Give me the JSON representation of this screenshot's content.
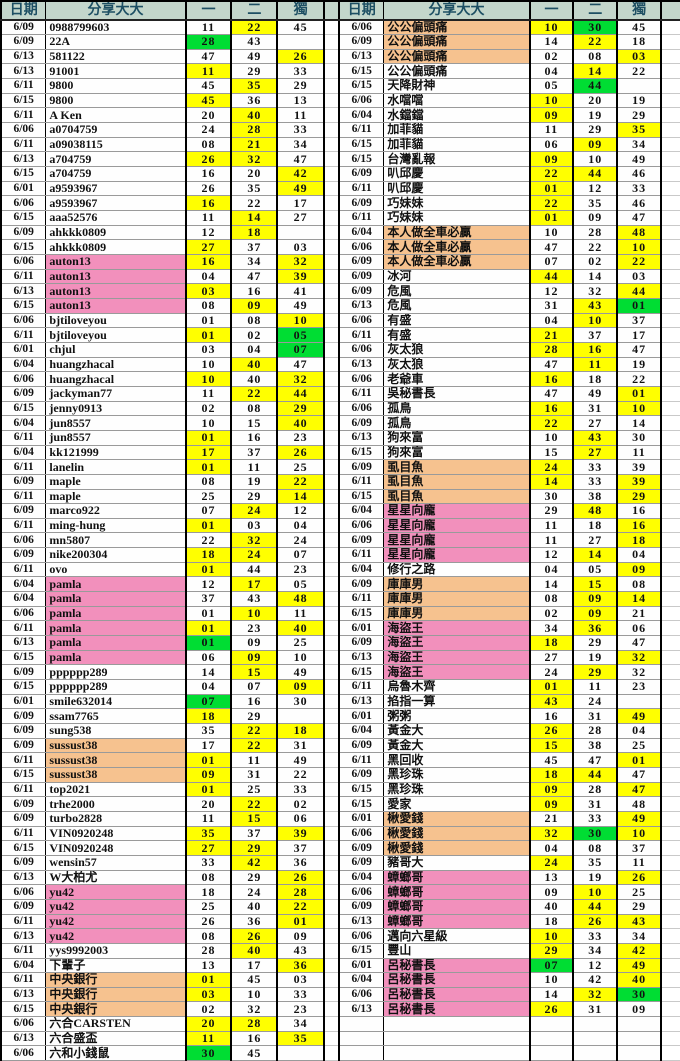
{
  "headers": {
    "date": "日期",
    "sharer": "分享大大",
    "col1": "一",
    "col2": "二",
    "col3": "獨"
  },
  "colors": {
    "highlight_yellow": "#ffff00",
    "highlight_green": "#00dd33",
    "name_pink": "#f290bc",
    "name_orange": "#f6c28f",
    "header_bg": "#c3d6cb",
    "header_text": "#1d4f63"
  },
  "left_rows": [
    [
      "6/09",
      "0988799603",
      "w",
      "11",
      "w",
      "22",
      "y",
      "45",
      "w"
    ],
    [
      "6/09",
      "22A",
      "w",
      "28",
      "g",
      "43",
      "w",
      "",
      "w"
    ],
    [
      "6/13",
      "581122",
      "w",
      "47",
      "w",
      "49",
      "w",
      "26",
      "y"
    ],
    [
      "6/13",
      "91001",
      "w",
      "11",
      "y",
      "29",
      "w",
      "33",
      "w"
    ],
    [
      "6/11",
      "9800",
      "w",
      "45",
      "w",
      "35",
      "y",
      "29",
      "w"
    ],
    [
      "6/15",
      "9800",
      "w",
      "45",
      "y",
      "36",
      "w",
      "13",
      "w"
    ],
    [
      "6/11",
      "A Ken",
      "w",
      "20",
      "w",
      "40",
      "y",
      "11",
      "w"
    ],
    [
      "6/06",
      "a0704759",
      "w",
      "24",
      "w",
      "28",
      "y",
      "33",
      "w"
    ],
    [
      "6/11",
      "a09038115",
      "w",
      "08",
      "w",
      "21",
      "y",
      "34",
      "w"
    ],
    [
      "6/13",
      "a704759",
      "w",
      "26",
      "y",
      "32",
      "y",
      "47",
      "w"
    ],
    [
      "6/15",
      "a704759",
      "w",
      "16",
      "w",
      "20",
      "w",
      "42",
      "y"
    ],
    [
      "6/01",
      "a9593967",
      "w",
      "26",
      "w",
      "35",
      "w",
      "49",
      "y"
    ],
    [
      "6/06",
      "a9593967",
      "w",
      "16",
      "y",
      "22",
      "w",
      "17",
      "w"
    ],
    [
      "6/15",
      "aaa52576",
      "w",
      "11",
      "w",
      "14",
      "y",
      "27",
      "w"
    ],
    [
      "6/09",
      "ahkkk0809",
      "w",
      "12",
      "w",
      "18",
      "y",
      "",
      "w"
    ],
    [
      "6/15",
      "ahkkk0809",
      "w",
      "27",
      "y",
      "37",
      "w",
      "03",
      "w"
    ],
    [
      "6/06",
      "auton13",
      "p",
      "16",
      "y",
      "34",
      "w",
      "32",
      "y"
    ],
    [
      "6/11",
      "auton13",
      "p",
      "04",
      "w",
      "47",
      "w",
      "39",
      "y"
    ],
    [
      "6/13",
      "auton13",
      "p",
      "03",
      "y",
      "16",
      "w",
      "41",
      "w"
    ],
    [
      "6/15",
      "auton13",
      "p",
      "08",
      "w",
      "09",
      "y",
      "49",
      "w"
    ],
    [
      "6/06",
      "bjtiloveyou",
      "w",
      "01",
      "w",
      "08",
      "w",
      "10",
      "y"
    ],
    [
      "6/11",
      "bjtiloveyou",
      "w",
      "01",
      "y",
      "02",
      "w",
      "05",
      "g"
    ],
    [
      "6/01",
      "chjul",
      "w",
      "03",
      "w",
      "04",
      "w",
      "07",
      "g"
    ],
    [
      "6/04",
      "huangzhacal",
      "w",
      "10",
      "w",
      "40",
      "y",
      "47",
      "w"
    ],
    [
      "6/06",
      "huangzhacal",
      "w",
      "10",
      "y",
      "40",
      "w",
      "32",
      "y"
    ],
    [
      "6/09",
      "jackyman77",
      "w",
      "11",
      "w",
      "22",
      "y",
      "44",
      "y"
    ],
    [
      "6/15",
      "jenny0913",
      "w",
      "02",
      "w",
      "08",
      "w",
      "29",
      "y"
    ],
    [
      "6/04",
      "jun8557",
      "w",
      "10",
      "w",
      "15",
      "w",
      "40",
      "y"
    ],
    [
      "6/11",
      "jun8557",
      "w",
      "01",
      "y",
      "16",
      "w",
      "23",
      "w"
    ],
    [
      "6/04",
      "kk121999",
      "w",
      "17",
      "y",
      "37",
      "w",
      "26",
      "y"
    ],
    [
      "6/11",
      "lanelin",
      "w",
      "01",
      "y",
      "11",
      "w",
      "25",
      "w"
    ],
    [
      "6/09",
      "maple",
      "w",
      "08",
      "w",
      "19",
      "w",
      "22",
      "y"
    ],
    [
      "6/11",
      "maple",
      "w",
      "25",
      "w",
      "29",
      "w",
      "14",
      "y"
    ],
    [
      "6/09",
      "marco922",
      "w",
      "07",
      "w",
      "24",
      "y",
      "12",
      "w"
    ],
    [
      "6/11",
      "ming-hung",
      "w",
      "01",
      "y",
      "03",
      "w",
      "04",
      "w"
    ],
    [
      "6/06",
      "mn5807",
      "w",
      "22",
      "w",
      "32",
      "y",
      "24",
      "w"
    ],
    [
      "6/09",
      "nike200304",
      "w",
      "18",
      "y",
      "24",
      "y",
      "07",
      "w"
    ],
    [
      "6/11",
      "ovo",
      "w",
      "01",
      "y",
      "44",
      "w",
      "23",
      "w"
    ],
    [
      "6/04",
      "pamla",
      "p",
      "12",
      "w",
      "17",
      "y",
      "05",
      "w"
    ],
    [
      "6/04",
      "pamla",
      "p",
      "37",
      "w",
      "43",
      "w",
      "48",
      "y"
    ],
    [
      "6/06",
      "pamla",
      "p",
      "01",
      "w",
      "10",
      "y",
      "11",
      "w"
    ],
    [
      "6/11",
      "pamla",
      "p",
      "01",
      "y",
      "23",
      "w",
      "40",
      "y"
    ],
    [
      "6/13",
      "pamla",
      "p",
      "01",
      "g",
      "09",
      "w",
      "25",
      "w"
    ],
    [
      "6/15",
      "pamla",
      "p",
      "06",
      "w",
      "09",
      "y",
      "10",
      "w"
    ],
    [
      "6/09",
      "pppppp289",
      "w",
      "14",
      "w",
      "15",
      "y",
      "49",
      "w"
    ],
    [
      "6/15",
      "pppppp289",
      "w",
      "04",
      "w",
      "07",
      "w",
      "09",
      "y"
    ],
    [
      "6/01",
      "smile632014",
      "w",
      "07",
      "g",
      "16",
      "w",
      "30",
      "w"
    ],
    [
      "6/09",
      "ssam7765",
      "w",
      "18",
      "y",
      "29",
      "w",
      "",
      "w"
    ],
    [
      "6/09",
      "sung538",
      "w",
      "35",
      "w",
      "22",
      "y",
      "18",
      "y"
    ],
    [
      "6/09",
      "sussust38",
      "o",
      "17",
      "w",
      "22",
      "y",
      "31",
      "w"
    ],
    [
      "6/11",
      "sussust38",
      "o",
      "01",
      "y",
      "11",
      "w",
      "49",
      "w"
    ],
    [
      "6/15",
      "sussust38",
      "o",
      "09",
      "y",
      "31",
      "w",
      "22",
      "w"
    ],
    [
      "6/11",
      "top2021",
      "w",
      "01",
      "y",
      "25",
      "w",
      "33",
      "w"
    ],
    [
      "6/09",
      "trhe2000",
      "w",
      "20",
      "w",
      "22",
      "y",
      "02",
      "w"
    ],
    [
      "6/09",
      "turbo2828",
      "w",
      "11",
      "w",
      "15",
      "y",
      "06",
      "w"
    ],
    [
      "6/11",
      "VIN0920248",
      "w",
      "35",
      "y",
      "37",
      "w",
      "39",
      "y"
    ],
    [
      "6/15",
      "VIN0920248",
      "w",
      "27",
      "y",
      "29",
      "y",
      "37",
      "w"
    ],
    [
      "6/09",
      "wensin57",
      "w",
      "33",
      "w",
      "42",
      "y",
      "36",
      "w"
    ],
    [
      "6/13",
      "W大柏尤",
      "w",
      "08",
      "w",
      "29",
      "w",
      "26",
      "y"
    ],
    [
      "6/06",
      "yu42",
      "p",
      "18",
      "w",
      "24",
      "w",
      "28",
      "y"
    ],
    [
      "6/09",
      "yu42",
      "p",
      "25",
      "w",
      "40",
      "w",
      "22",
      "y"
    ],
    [
      "6/11",
      "yu42",
      "p",
      "26",
      "w",
      "36",
      "w",
      "01",
      "y"
    ],
    [
      "6/13",
      "yu42",
      "p",
      "08",
      "w",
      "26",
      "y",
      "09",
      "w"
    ],
    [
      "6/11",
      "yys9992003",
      "w",
      "28",
      "w",
      "40",
      "y",
      "43",
      "w"
    ],
    [
      "6/04",
      "下輩子",
      "w",
      "13",
      "w",
      "17",
      "w",
      "36",
      "y"
    ],
    [
      "6/11",
      "中央銀行",
      "o",
      "01",
      "y",
      "45",
      "w",
      "03",
      "w"
    ],
    [
      "6/13",
      "中央銀行",
      "o",
      "03",
      "y",
      "10",
      "w",
      "33",
      "w"
    ],
    [
      "6/15",
      "中央銀行",
      "o",
      "02",
      "w",
      "32",
      "w",
      "23",
      "w"
    ],
    [
      "6/06",
      "六合CARSTEN",
      "w",
      "20",
      "y",
      "28",
      "y",
      "34",
      "w"
    ],
    [
      "6/13",
      "六合盛盃",
      "w",
      "11",
      "y",
      "16",
      "w",
      "35",
      "y"
    ],
    [
      "6/06",
      "六和小錢鼠",
      "w",
      "30",
      "g",
      "45",
      "w",
      "",
      "w"
    ]
  ],
  "right_rows": [
    [
      "6/06",
      "公公偏頭痛",
      "o",
      "10",
      "y",
      "30",
      "g",
      "45",
      "w"
    ],
    [
      "6/09",
      "公公偏頭痛",
      "o",
      "14",
      "w",
      "22",
      "y",
      "18",
      "w"
    ],
    [
      "6/13",
      "公公偏頭痛",
      "o",
      "02",
      "w",
      "08",
      "w",
      "03",
      "y"
    ],
    [
      "6/15",
      "公公偏頭痛",
      "w",
      "04",
      "w",
      "14",
      "y",
      "22",
      "w"
    ],
    [
      "6/15",
      "天降財神",
      "w",
      "05",
      "w",
      "44",
      "g",
      "",
      "w"
    ],
    [
      "6/06",
      "水噹噹",
      "w",
      "10",
      "y",
      "20",
      "w",
      "19",
      "w"
    ],
    [
      "6/04",
      "水鐺鐺",
      "w",
      "09",
      "y",
      "19",
      "w",
      "29",
      "w"
    ],
    [
      "6/11",
      "加菲貓",
      "w",
      "11",
      "w",
      "29",
      "w",
      "35",
      "y"
    ],
    [
      "6/15",
      "加菲貓",
      "w",
      "06",
      "w",
      "09",
      "y",
      "34",
      "w"
    ],
    [
      "6/15",
      "台灣亂報",
      "w",
      "09",
      "y",
      "10",
      "w",
      "49",
      "w"
    ],
    [
      "6/09",
      "叭邱慶",
      "w",
      "22",
      "y",
      "44",
      "y",
      "46",
      "w"
    ],
    [
      "6/11",
      "叭邱慶",
      "w",
      "01",
      "y",
      "12",
      "w",
      "33",
      "w"
    ],
    [
      "6/09",
      "巧妹妹",
      "w",
      "22",
      "y",
      "35",
      "w",
      "46",
      "w"
    ],
    [
      "6/11",
      "巧妹妹",
      "w",
      "01",
      "y",
      "09",
      "w",
      "47",
      "w"
    ],
    [
      "6/04",
      "本人做全車必贏",
      "o",
      "10",
      "w",
      "28",
      "w",
      "48",
      "y"
    ],
    [
      "6/06",
      "本人做全車必贏",
      "o",
      "47",
      "w",
      "22",
      "w",
      "10",
      "y"
    ],
    [
      "6/09",
      "本人做全車必贏",
      "o",
      "07",
      "w",
      "02",
      "w",
      "22",
      "y"
    ],
    [
      "6/09",
      "冰河",
      "w",
      "44",
      "y",
      "14",
      "w",
      "03",
      "w"
    ],
    [
      "6/09",
      "危風",
      "w",
      "12",
      "w",
      "32",
      "w",
      "44",
      "y"
    ],
    [
      "6/13",
      "危風",
      "w",
      "31",
      "w",
      "43",
      "y",
      "01",
      "g"
    ],
    [
      "6/06",
      "有盛",
      "w",
      "04",
      "w",
      "10",
      "y",
      "37",
      "w"
    ],
    [
      "6/11",
      "有盛",
      "w",
      "21",
      "y",
      "37",
      "w",
      "17",
      "w"
    ],
    [
      "6/06",
      "灰太狼",
      "w",
      "28",
      "y",
      "16",
      "y",
      "47",
      "w"
    ],
    [
      "6/13",
      "灰太狼",
      "w",
      "47",
      "w",
      "11",
      "y",
      "19",
      "w"
    ],
    [
      "6/06",
      "老爺車",
      "w",
      "16",
      "y",
      "18",
      "w",
      "22",
      "w"
    ],
    [
      "6/11",
      "吳秘書長",
      "w",
      "47",
      "w",
      "49",
      "w",
      "01",
      "y"
    ],
    [
      "6/06",
      "孤鳥",
      "w",
      "16",
      "y",
      "31",
      "w",
      "10",
      "y"
    ],
    [
      "6/09",
      "孤鳥",
      "w",
      "22",
      "y",
      "27",
      "w",
      "14",
      "w"
    ],
    [
      "6/13",
      "狗來富",
      "w",
      "10",
      "w",
      "43",
      "y",
      "30",
      "w"
    ],
    [
      "6/15",
      "狗來富",
      "w",
      "15",
      "w",
      "27",
      "y",
      "11",
      "w"
    ],
    [
      "6/09",
      "虱目魚",
      "o",
      "24",
      "y",
      "33",
      "w",
      "39",
      "w"
    ],
    [
      "6/11",
      "虱目魚",
      "o",
      "14",
      "y",
      "33",
      "w",
      "39",
      "y"
    ],
    [
      "6/15",
      "虱目魚",
      "o",
      "30",
      "w",
      "38",
      "w",
      "29",
      "y"
    ],
    [
      "6/04",
      "星星向龐",
      "p",
      "29",
      "w",
      "48",
      "y",
      "16",
      "w"
    ],
    [
      "6/06",
      "星星向龐",
      "p",
      "11",
      "w",
      "18",
      "w",
      "16",
      "y"
    ],
    [
      "6/09",
      "星星向龐",
      "p",
      "11",
      "w",
      "27",
      "w",
      "18",
      "y"
    ],
    [
      "6/11",
      "星星向龐",
      "p",
      "12",
      "w",
      "14",
      "y",
      "04",
      "w"
    ],
    [
      "6/04",
      "修行之路",
      "w",
      "04",
      "w",
      "05",
      "w",
      "09",
      "y"
    ],
    [
      "6/09",
      "庫庫男",
      "o",
      "14",
      "w",
      "15",
      "y",
      "08",
      "w"
    ],
    [
      "6/11",
      "庫庫男",
      "o",
      "08",
      "w",
      "09",
      "y",
      "14",
      "y"
    ],
    [
      "6/15",
      "庫庫男",
      "o",
      "02",
      "w",
      "09",
      "y",
      "21",
      "w"
    ],
    [
      "6/01",
      "海盜王",
      "p",
      "34",
      "w",
      "36",
      "y",
      "06",
      "w"
    ],
    [
      "6/09",
      "海盜王",
      "p",
      "18",
      "y",
      "29",
      "w",
      "47",
      "w"
    ],
    [
      "6/13",
      "海盜王",
      "p",
      "27",
      "w",
      "19",
      "w",
      "32",
      "y"
    ],
    [
      "6/15",
      "海盜王",
      "p",
      "24",
      "w",
      "29",
      "y",
      "32",
      "w"
    ],
    [
      "6/11",
      "烏魯木齊",
      "w",
      "01",
      "y",
      "11",
      "w",
      "23",
      "w"
    ],
    [
      "6/13",
      "掐指一算",
      "w",
      "43",
      "y",
      "24",
      "w",
      "",
      "w"
    ],
    [
      "6/01",
      "粥粥",
      "w",
      "16",
      "w",
      "31",
      "w",
      "49",
      "y"
    ],
    [
      "6/04",
      "黃金大",
      "w",
      "26",
      "y",
      "28",
      "w",
      "04",
      "w"
    ],
    [
      "6/09",
      "黃金大",
      "w",
      "15",
      "y",
      "38",
      "w",
      "25",
      "w"
    ],
    [
      "6/11",
      "黑回收",
      "w",
      "45",
      "w",
      "47",
      "w",
      "01",
      "y"
    ],
    [
      "6/09",
      "黑珍珠",
      "w",
      "18",
      "y",
      "44",
      "y",
      "47",
      "w"
    ],
    [
      "6/15",
      "黑珍珠",
      "w",
      "09",
      "y",
      "28",
      "w",
      "47",
      "y"
    ],
    [
      "6/15",
      "愛家",
      "w",
      "09",
      "y",
      "31",
      "w",
      "48",
      "w"
    ],
    [
      "6/01",
      "楸愛錢",
      "o",
      "21",
      "w",
      "33",
      "w",
      "49",
      "y"
    ],
    [
      "6/06",
      "楸愛錢",
      "o",
      "32",
      "y",
      "30",
      "g",
      "10",
      "y"
    ],
    [
      "6/09",
      "楸愛錢",
      "o",
      "04",
      "w",
      "08",
      "w",
      "37",
      "w"
    ],
    [
      "6/09",
      "豬哥大",
      "w",
      "24",
      "y",
      "35",
      "w",
      "11",
      "w"
    ],
    [
      "6/04",
      "蟑螂哥",
      "p",
      "13",
      "w",
      "19",
      "w",
      "26",
      "y"
    ],
    [
      "6/06",
      "蟑螂哥",
      "p",
      "09",
      "w",
      "10",
      "y",
      "25",
      "w"
    ],
    [
      "6/09",
      "蟑螂哥",
      "p",
      "40",
      "w",
      "44",
      "y",
      "29",
      "w"
    ],
    [
      "6/13",
      "蟑螂哥",
      "p",
      "18",
      "w",
      "26",
      "y",
      "43",
      "y"
    ],
    [
      "6/06",
      "邁向六星級",
      "w",
      "10",
      "y",
      "33",
      "w",
      "34",
      "w"
    ],
    [
      "6/15",
      "豐山",
      "w",
      "29",
      "y",
      "34",
      "w",
      "42",
      "y"
    ],
    [
      "6/01",
      "呂秘書長",
      "p",
      "07",
      "g",
      "12",
      "w",
      "49",
      "y"
    ],
    [
      "6/04",
      "呂秘書長",
      "p",
      "10",
      "w",
      "42",
      "w",
      "40",
      "y"
    ],
    [
      "6/06",
      "呂秘書長",
      "p",
      "14",
      "w",
      "32",
      "y",
      "30",
      "g"
    ],
    [
      "6/13",
      "呂秘書長",
      "p",
      "26",
      "y",
      "31",
      "w",
      "09",
      "w"
    ],
    [
      "",
      "",
      "w",
      "",
      "w",
      "",
      "w",
      "",
      "w"
    ],
    [
      "",
      "",
      "w",
      "",
      "w",
      "",
      "w",
      "",
      "w"
    ],
    [
      "",
      "",
      "w",
      "",
      "w",
      "",
      "w",
      "",
      "w"
    ]
  ]
}
